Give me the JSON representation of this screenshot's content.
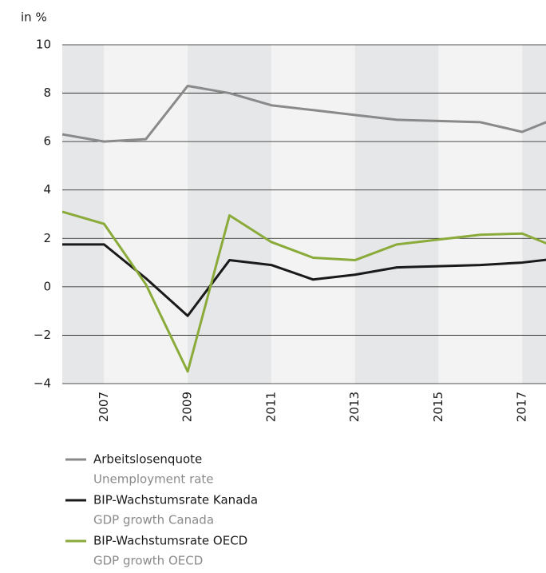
{
  "chart_data": {
    "type": "line",
    "y_label": "in %",
    "x": [
      2006,
      2007,
      2008,
      2009,
      2010,
      2011,
      2012,
      2013,
      2014,
      2015,
      2016,
      2017,
      2018
    ],
    "series": [
      {
        "name": "Arbeitslosenquote",
        "name_en": "Unemployment rate",
        "color": "#8a8a8a",
        "values": [
          6.3,
          6.0,
          6.1,
          8.3,
          8.0,
          7.5,
          7.3,
          7.1,
          6.9,
          6.85,
          6.8,
          6.4,
          7.1
        ]
      },
      {
        "name": "BIP-Wachstumsrate Kanada",
        "name_en": "GDP growth Canada",
        "color": "#1a1a1a",
        "values": [
          1.75,
          1.75,
          0.35,
          -1.2,
          1.1,
          0.9,
          0.3,
          0.5,
          0.8,
          0.85,
          0.9,
          1.0,
          1.2
        ]
      },
      {
        "name": "BIP-Wachstumsrate OECD",
        "name_en": "GDP growth OECD",
        "color": "#8aab3a",
        "values": [
          3.1,
          2.6,
          0.1,
          -3.5,
          2.95,
          1.85,
          1.2,
          1.1,
          1.75,
          1.95,
          2.15,
          2.2,
          1.5
        ]
      }
    ],
    "xlim": [
      2006,
      2017.57
    ],
    "xticks": [
      2007,
      2009,
      2011,
      2013,
      2015,
      2017
    ],
    "ylim": [
      -4,
      10
    ],
    "yticks": [
      {
        "value": -4,
        "label": "−4"
      },
      {
        "value": -2,
        "label": "−2"
      },
      0,
      2,
      4,
      6,
      8,
      10
    ],
    "grid": true,
    "band_colors": [
      "#e6e7e8",
      "#f3f3f3"
    ]
  }
}
